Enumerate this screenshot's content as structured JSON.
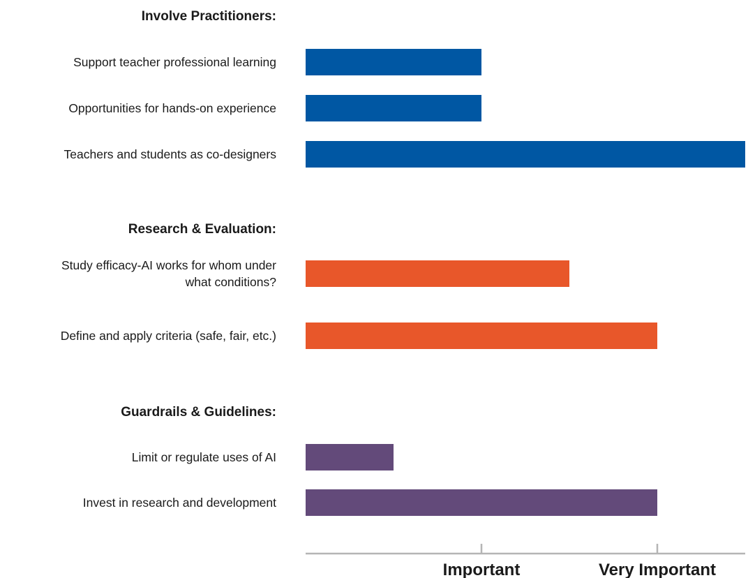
{
  "chart_data": {
    "type": "bar",
    "orientation": "horizontal",
    "title": "",
    "xlabel": "",
    "ylabel": "",
    "xlim": [
      0,
      2.5
    ],
    "x_ticks": [
      {
        "value": 1,
        "label": "Important"
      },
      {
        "value": 2,
        "label": "Very Important"
      }
    ],
    "grid": false,
    "legend": "none",
    "groups": [
      {
        "title": "Involve Practitioners:",
        "color": "#0057A3",
        "bars": [
          {
            "label_lines": [
              "Support teacher professional learning"
            ],
            "value": 1.0
          },
          {
            "label_lines": [
              "Opportunities for hands-on experience"
            ],
            "value": 1.0
          },
          {
            "label_lines": [
              "Teachers and students as co-designers"
            ],
            "value": 2.5
          }
        ]
      },
      {
        "title": "Research & Evaluation:",
        "color": "#E8572A",
        "bars": [
          {
            "label_lines": [
              "Study efficacy-AI works for whom under",
              "what conditions?"
            ],
            "value": 1.5
          },
          {
            "label_lines": [
              "Define and apply criteria (safe, fair, etc.)"
            ],
            "value": 2.0
          }
        ]
      },
      {
        "title": "Guardrails & Guidelines:",
        "color": "#634A7A",
        "bars": [
          {
            "label_lines": [
              "Limit or regulate uses of AI"
            ],
            "value": 0.5
          },
          {
            "label_lines": [
              "Invest in research and development"
            ],
            "value": 2.0
          }
        ]
      }
    ]
  }
}
